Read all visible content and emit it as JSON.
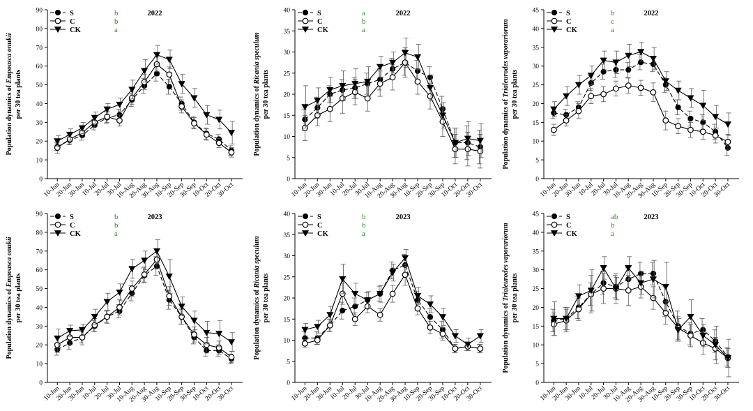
{
  "figure": {
    "dates": [
      "10-Jun",
      "20-Jun",
      "30-Jun",
      "10-Jul",
      "20-Jul",
      "30-Jul",
      "10-Aug",
      "20-Aug",
      "30-Aug",
      "10-Sep",
      "20-Sep",
      "30-Sep",
      "10-Oct",
      "20-Oct",
      "30-Oct"
    ],
    "colors": {
      "line": "#000000",
      "significance": "#2e8b2e"
    }
  },
  "chart_data": [
    {
      "type": "line",
      "title": "2022",
      "ylabel_prefix": "Population dynamics of ",
      "ylabel_species": "Empoasca onukii",
      "ylabel_suffix": "per 30 tea plants",
      "ylim": [
        0,
        90
      ],
      "yticks": [
        0,
        10,
        20,
        30,
        40,
        50,
        60,
        70,
        80,
        90
      ],
      "series": [
        {
          "name": "S",
          "sig": "b",
          "marker": "filled-circle",
          "values": [
            17,
            20.5,
            23,
            28.5,
            32.5,
            34,
            42,
            49.5,
            56,
            49,
            40,
            30,
            24,
            21,
            15
          ],
          "errors": [
            2,
            2.5,
            2.5,
            2.5,
            3,
            3,
            3.5,
            4,
            4,
            4,
            3.5,
            3,
            3,
            2.5,
            2.5
          ]
        },
        {
          "name": "C",
          "sig": "b",
          "marker": "open-circle",
          "values": [
            16.5,
            21,
            24.5,
            30,
            33,
            31,
            43,
            51.5,
            61,
            55.5,
            38.5,
            29.5,
            23.5,
            19,
            14
          ],
          "errors": [
            3,
            2.5,
            2.5,
            2.5,
            3,
            3,
            3.5,
            4,
            4,
            4,
            3.5,
            3,
            3,
            2.5,
            2.5
          ]
        },
        {
          "name": "CK",
          "sig": "a",
          "marker": "filled-triangle",
          "values": [
            20,
            23.5,
            27,
            32.5,
            37,
            39.5,
            47.5,
            57.5,
            66,
            63.5,
            50.5,
            43,
            34,
            31.5,
            24.5
          ],
          "errors": [
            3,
            3,
            3,
            3,
            3,
            3.5,
            5,
            6,
            5,
            5,
            5,
            5,
            5,
            5,
            6
          ]
        }
      ]
    },
    {
      "type": "line",
      "title": "2022",
      "ylabel_prefix": "Population dynamics of ",
      "ylabel_species": "Ricania speculum",
      "ylabel_suffix": "per 30 tea plants",
      "ylim": [
        0,
        40
      ],
      "yticks": [
        0,
        5,
        10,
        15,
        20,
        25,
        30,
        35,
        40
      ],
      "series": [
        {
          "name": "S",
          "sig": "a",
          "marker": "filled-circle",
          "values": [
            14,
            16.8,
            20,
            21,
            21.5,
            22.5,
            23.5,
            26,
            27.5,
            25.5,
            24,
            16.5,
            8.5,
            8.5,
            7.5
          ],
          "errors": [
            2.5,
            2.5,
            2,
            2.5,
            2.5,
            2.5,
            2.5,
            2.5,
            3,
            2.5,
            2.5,
            3,
            3.5,
            4,
            4
          ]
        },
        {
          "name": "C",
          "sig": "b",
          "marker": "open-circle",
          "values": [
            12,
            15,
            16.5,
            19,
            20.5,
            19,
            22.5,
            24,
            27.5,
            23,
            19.5,
            13.5,
            7,
            7,
            6.5
          ],
          "errors": [
            3,
            2.5,
            3,
            3.5,
            3,
            3,
            3,
            3,
            3.5,
            3,
            3,
            3.5,
            3.5,
            4,
            4
          ]
        },
        {
          "name": "CK",
          "sig": "a",
          "marker": "filled-triangle",
          "values": [
            17,
            18.5,
            21,
            22,
            22.5,
            23,
            26.5,
            27.5,
            29.8,
            28.8,
            21.5,
            15,
            8.5,
            9.5,
            9
          ],
          "errors": [
            5,
            3,
            3,
            3.5,
            3.5,
            3.5,
            2.5,
            2.5,
            3.5,
            3,
            3,
            3,
            3.5,
            4,
            4
          ]
        }
      ]
    },
    {
      "type": "line",
      "title": "2022",
      "ylabel_prefix": "Population dynamics of ",
      "ylabel_species": "Trialeurodes vaporariorum",
      "ylabel_suffix": "per 30 tea plants",
      "ylim": [
        0,
        45
      ],
      "yticks": [
        0,
        5,
        10,
        15,
        20,
        25,
        30,
        35,
        40,
        45
      ],
      "series": [
        {
          "name": "S",
          "sig": "b",
          "marker": "filled-circle",
          "values": [
            17.5,
            17,
            19,
            25.5,
            28.5,
            29,
            29,
            31,
            30.5,
            25,
            19,
            16,
            15,
            12.5,
            8.2
          ],
          "errors": [
            1.5,
            1.5,
            1.5,
            2,
            2,
            2,
            2,
            2,
            2,
            2,
            2,
            2,
            2,
            2,
            2
          ]
        },
        {
          "name": "C",
          "sig": "c",
          "marker": "open-circle",
          "values": [
            13,
            15.5,
            18,
            22,
            22.5,
            24,
            24.8,
            24.2,
            23,
            15.5,
            14,
            13,
            12.5,
            11.5,
            9.8
          ],
          "errors": [
            1.5,
            1.5,
            2,
            2,
            2,
            2,
            2,
            2,
            2.5,
            2.5,
            2,
            2,
            2,
            2,
            2
          ]
        },
        {
          "name": "CK",
          "sig": "a",
          "marker": "filled-triangle",
          "values": [
            18.5,
            22,
            25,
            27.5,
            31.5,
            31,
            32.8,
            33.8,
            32,
            26,
            23.5,
            21.5,
            19.5,
            16.5,
            14.5
          ],
          "errors": [
            2,
            2.5,
            2.5,
            2.5,
            2.5,
            3,
            3,
            2.5,
            3,
            2.5,
            2.5,
            2.5,
            4,
            3,
            3
          ]
        }
      ]
    },
    {
      "type": "line",
      "title": "2023",
      "ylabel_prefix": "Population dynamics of ",
      "ylabel_species": "Empoasca onukii",
      "ylabel_suffix": "per 30 tea plants",
      "ylim": [
        0,
        90
      ],
      "yticks": [
        0,
        10,
        20,
        30,
        40,
        50,
        60,
        70,
        80,
        90
      ],
      "series": [
        {
          "name": "S",
          "sig": "b",
          "marker": "filled-circle",
          "values": [
            17.5,
            21,
            24,
            30,
            35,
            38,
            47.5,
            57,
            62,
            44,
            35,
            24,
            17,
            17,
            12.5
          ],
          "errors": [
            3,
            3.5,
            3,
            3,
            3,
            3.5,
            4,
            4,
            5,
            5,
            4,
            3.5,
            3,
            3,
            2.5
          ]
        },
        {
          "name": "C",
          "sig": "b",
          "marker": "open-circle",
          "values": [
            20,
            24,
            24,
            30.5,
            35,
            40,
            50,
            57.5,
            65.5,
            46,
            35,
            25.5,
            20,
            18.5,
            13.5
          ],
          "errors": [
            4,
            4,
            4,
            3.5,
            3.5,
            4,
            4,
            4,
            5,
            5,
            4,
            4,
            4,
            3.5,
            3
          ]
        },
        {
          "name": "CK",
          "sig": "a",
          "marker": "filled-triangle",
          "values": [
            23.5,
            27.5,
            28,
            35,
            43,
            48,
            60.5,
            65,
            70,
            56.5,
            40.5,
            33,
            26.5,
            26,
            21.5
          ],
          "errors": [
            5,
            3,
            3,
            4,
            4.5,
            4.5,
            5,
            5,
            6,
            9,
            5,
            5,
            6,
            7,
            5
          ]
        }
      ]
    },
    {
      "type": "line",
      "title": "2023",
      "ylabel_prefix": "Population dynamics of ",
      "ylabel_species": "Ricania speculum",
      "ylabel_suffix": "per 30 tea plants",
      "ylim": [
        0,
        40
      ],
      "yticks": [
        0,
        5,
        10,
        15,
        20,
        25,
        30,
        35,
        40
      ],
      "series": [
        {
          "name": "S",
          "sig": "b",
          "marker": "filled-circle",
          "values": [
            10.5,
            10.5,
            13.5,
            17,
            18,
            19.5,
            21,
            26.5,
            27.8,
            19.5,
            15.5,
            12.5,
            8,
            8.5,
            8
          ],
          "errors": [
            1.5,
            1.5,
            1.5,
            2,
            2,
            1.8,
            1.8,
            2,
            2.5,
            2,
            2,
            2,
            1,
            1,
            1
          ]
        },
        {
          "name": "C",
          "sig": "b",
          "marker": "open-circle",
          "values": [
            9.2,
            10,
            13.5,
            21,
            15,
            18,
            16,
            21,
            25.5,
            17.5,
            13,
            11.5,
            8,
            8.5,
            8
          ],
          "errors": [
            1,
            1,
            1.5,
            2.5,
            1.5,
            1.5,
            1.5,
            2,
            2.5,
            1.5,
            1.5,
            1.5,
            1,
            1,
            1
          ]
        },
        {
          "name": "CK",
          "sig": "a",
          "marker": "filled-triangle",
          "values": [
            12.5,
            13.2,
            16,
            24.5,
            21,
            19.5,
            21,
            26,
            29.5,
            20.5,
            18.5,
            15.5,
            11,
            9,
            11
          ],
          "errors": [
            1.5,
            1.5,
            2,
            3.5,
            2.5,
            2,
            2,
            2,
            2,
            2,
            2,
            2,
            1.5,
            1.5,
            1.5
          ]
        }
      ]
    },
    {
      "type": "line",
      "title": "2023",
      "ylabel_prefix": "Population dynamics of ",
      "ylabel_species": "Trialeurodes vaporariorum",
      "ylabel_suffix": "per 30 tea plants",
      "ylim": [
        0,
        45
      ],
      "yticks": [
        0,
        5,
        10,
        15,
        20,
        25,
        30,
        35,
        40,
        45
      ],
      "series": [
        {
          "name": "S",
          "sig": "ab",
          "marker": "filled-circle",
          "values": [
            16.5,
            17,
            20,
            23.5,
            26.5,
            25.5,
            27.5,
            29,
            29,
            21.5,
            15,
            13,
            14,
            11,
            6.8
          ],
          "errors": [
            3,
            3,
            3,
            3,
            3,
            3,
            3,
            3,
            3,
            4,
            4,
            3,
            3,
            3,
            2.5
          ]
        },
        {
          "name": "C",
          "sig": "b",
          "marker": "open-circle",
          "values": [
            15.5,
            16.5,
            19.5,
            23.5,
            25,
            25,
            24.5,
            25.5,
            22.5,
            18.5,
            14.5,
            12.5,
            10.5,
            9,
            6.5
          ],
          "errors": [
            3,
            3,
            3,
            5,
            4,
            4,
            4,
            3,
            3,
            3,
            3,
            3,
            3,
            3,
            2.5
          ]
        },
        {
          "name": "CK",
          "sig": "a",
          "marker": "filled-triangle",
          "values": [
            17,
            17,
            23,
            24.5,
            30.5,
            25,
            30.5,
            26.5,
            27.5,
            25.5,
            14,
            17.5,
            12.5,
            10,
            6.5
          ],
          "errors": [
            4.5,
            3,
            3,
            5.5,
            3,
            3,
            3,
            3,
            5,
            6.5,
            3,
            4.5,
            3,
            5,
            5
          ]
        }
      ]
    }
  ]
}
